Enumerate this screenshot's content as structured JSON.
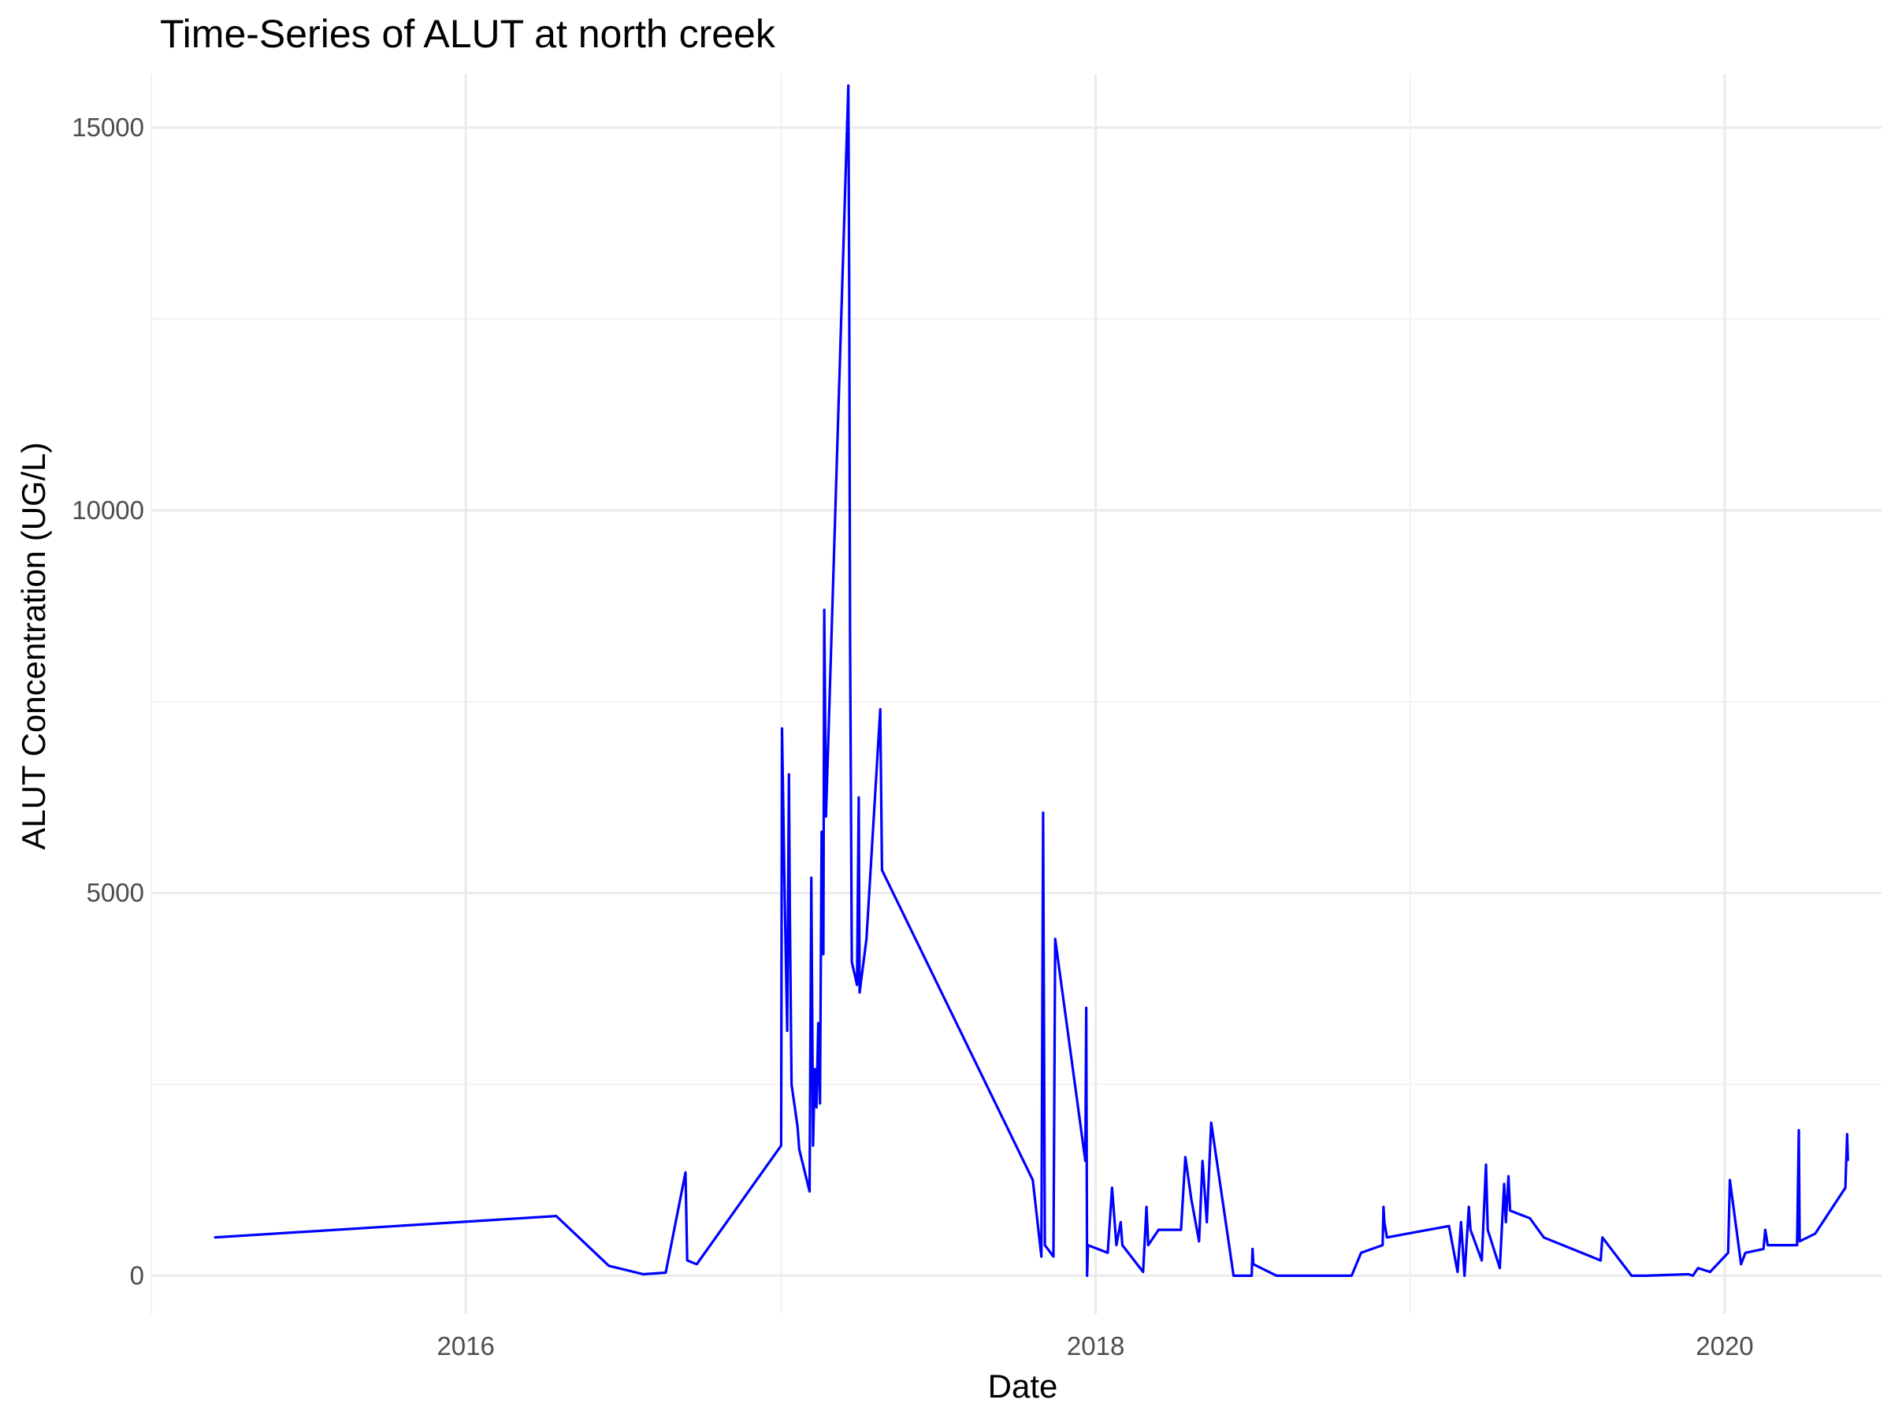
{
  "chart_data": {
    "type": "line",
    "title": "Time-Series of ALUT at north creek",
    "xlabel": "Date",
    "ylabel": "ALUT Concentration (UG/L)",
    "x_tick_labels": [
      "2016",
      "2018",
      "2020"
    ],
    "y_tick_labels": [
      "0",
      "5000",
      "10000",
      "15000"
    ],
    "xlim": [
      "2015-01-01",
      "2020-07-01"
    ],
    "ylim": [
      -500,
      15700
    ],
    "grid": true,
    "legend": "none",
    "line_color": "#0000ff",
    "series": [
      {
        "values": [
          [
            "2015-03-15",
            500
          ],
          [
            "2016-04-15",
            780
          ],
          [
            "2016-06-15",
            130
          ],
          [
            "2016-07-25",
            20
          ],
          [
            "2016-08-20",
            40
          ],
          [
            "2016-09-12",
            1350
          ],
          [
            "2016-09-14",
            200
          ],
          [
            "2016-09-25",
            150
          ],
          [
            "2017-01-01",
            1700
          ],
          [
            "2017-01-02",
            7150
          ],
          [
            "2017-01-05",
            5000
          ],
          [
            "2017-01-08",
            3200
          ],
          [
            "2017-01-10",
            6550
          ],
          [
            "2017-01-11",
            4800
          ],
          [
            "2017-01-13",
            2500
          ],
          [
            "2017-01-20",
            1950
          ],
          [
            "2017-01-22",
            1650
          ],
          [
            "2017-02-03",
            1100
          ],
          [
            "2017-02-05",
            5200
          ],
          [
            "2017-02-07",
            1700
          ],
          [
            "2017-02-09",
            2700
          ],
          [
            "2017-02-11",
            2200
          ],
          [
            "2017-02-13",
            3300
          ],
          [
            "2017-02-15",
            2250
          ],
          [
            "2017-02-17",
            5800
          ],
          [
            "2017-02-19",
            4200
          ],
          [
            "2017-02-20",
            8700
          ],
          [
            "2017-02-22",
            6000
          ],
          [
            "2017-03-20",
            15550
          ],
          [
            "2017-03-21",
            12900
          ],
          [
            "2017-03-22",
            8300
          ],
          [
            "2017-03-24",
            4100
          ],
          [
            "2017-03-30",
            3800
          ],
          [
            "2017-04-01",
            6250
          ],
          [
            "2017-04-02",
            3700
          ],
          [
            "2017-04-10",
            4400
          ],
          [
            "2017-04-26",
            7400
          ],
          [
            "2017-04-28",
            5300
          ],
          [
            "2017-10-20",
            1250
          ],
          [
            "2017-10-30",
            250
          ],
          [
            "2017-11-01",
            6050
          ],
          [
            "2017-11-03",
            400
          ],
          [
            "2017-11-13",
            250
          ],
          [
            "2017-11-15",
            4400
          ],
          [
            "2017-12-20",
            1500
          ],
          [
            "2017-12-21",
            3500
          ],
          [
            "2017-12-22",
            0
          ],
          [
            "2017-12-23",
            400
          ],
          [
            "2018-01-15",
            300
          ],
          [
            "2018-01-20",
            1150
          ],
          [
            "2018-01-25",
            400
          ],
          [
            "2018-01-30",
            700
          ],
          [
            "2018-02-01",
            400
          ],
          [
            "2018-02-25",
            50
          ],
          [
            "2018-03-01",
            900
          ],
          [
            "2018-03-03",
            400
          ],
          [
            "2018-03-15",
            600
          ],
          [
            "2018-04-10",
            600
          ],
          [
            "2018-04-15",
            1550
          ],
          [
            "2018-04-22",
            1000
          ],
          [
            "2018-05-01",
            450
          ],
          [
            "2018-05-05",
            1500
          ],
          [
            "2018-05-10",
            700
          ],
          [
            "2018-05-15",
            2000
          ],
          [
            "2018-06-10",
            0
          ],
          [
            "2018-07-01",
            0
          ],
          [
            "2018-07-02",
            350
          ],
          [
            "2018-07-03",
            150
          ],
          [
            "2018-07-30",
            0
          ],
          [
            "2018-10-25",
            0
          ],
          [
            "2018-11-05",
            300
          ],
          [
            "2018-11-30",
            400
          ],
          [
            "2018-12-01",
            900
          ],
          [
            "2018-12-02",
            700
          ],
          [
            "2018-12-05",
            500
          ],
          [
            "2019-02-15",
            650
          ],
          [
            "2019-02-25",
            50
          ],
          [
            "2019-03-01",
            700
          ],
          [
            "2019-03-05",
            0
          ],
          [
            "2019-03-10",
            900
          ],
          [
            "2019-03-12",
            600
          ],
          [
            "2019-03-25",
            200
          ],
          [
            "2019-03-30",
            1450
          ],
          [
            "2019-04-01",
            600
          ],
          [
            "2019-04-15",
            100
          ],
          [
            "2019-04-20",
            1200
          ],
          [
            "2019-04-22",
            700
          ],
          [
            "2019-04-25",
            1300
          ],
          [
            "2019-04-27",
            850
          ],
          [
            "2019-05-20",
            750
          ],
          [
            "2019-06-05",
            500
          ],
          [
            "2019-08-10",
            200
          ],
          [
            "2019-08-12",
            500
          ],
          [
            "2019-09-15",
            0
          ],
          [
            "2019-10-01",
            0
          ],
          [
            "2019-11-20",
            20
          ],
          [
            "2019-11-25",
            0
          ],
          [
            "2019-12-01",
            100
          ],
          [
            "2019-12-15",
            50
          ],
          [
            "2020-01-05",
            300
          ],
          [
            "2020-01-07",
            1250
          ],
          [
            "2020-01-20",
            150
          ],
          [
            "2020-01-25",
            300
          ],
          [
            "2020-02-15",
            350
          ],
          [
            "2020-02-17",
            600
          ],
          [
            "2020-02-20",
            400
          ],
          [
            "2020-03-25",
            400
          ],
          [
            "2020-03-27",
            1900
          ],
          [
            "2020-03-28",
            450
          ],
          [
            "2020-04-15",
            550
          ],
          [
            "2020-05-20",
            1150
          ],
          [
            "2020-05-22",
            1850
          ],
          [
            "2020-05-23",
            1500
          ]
        ]
      }
    ]
  }
}
